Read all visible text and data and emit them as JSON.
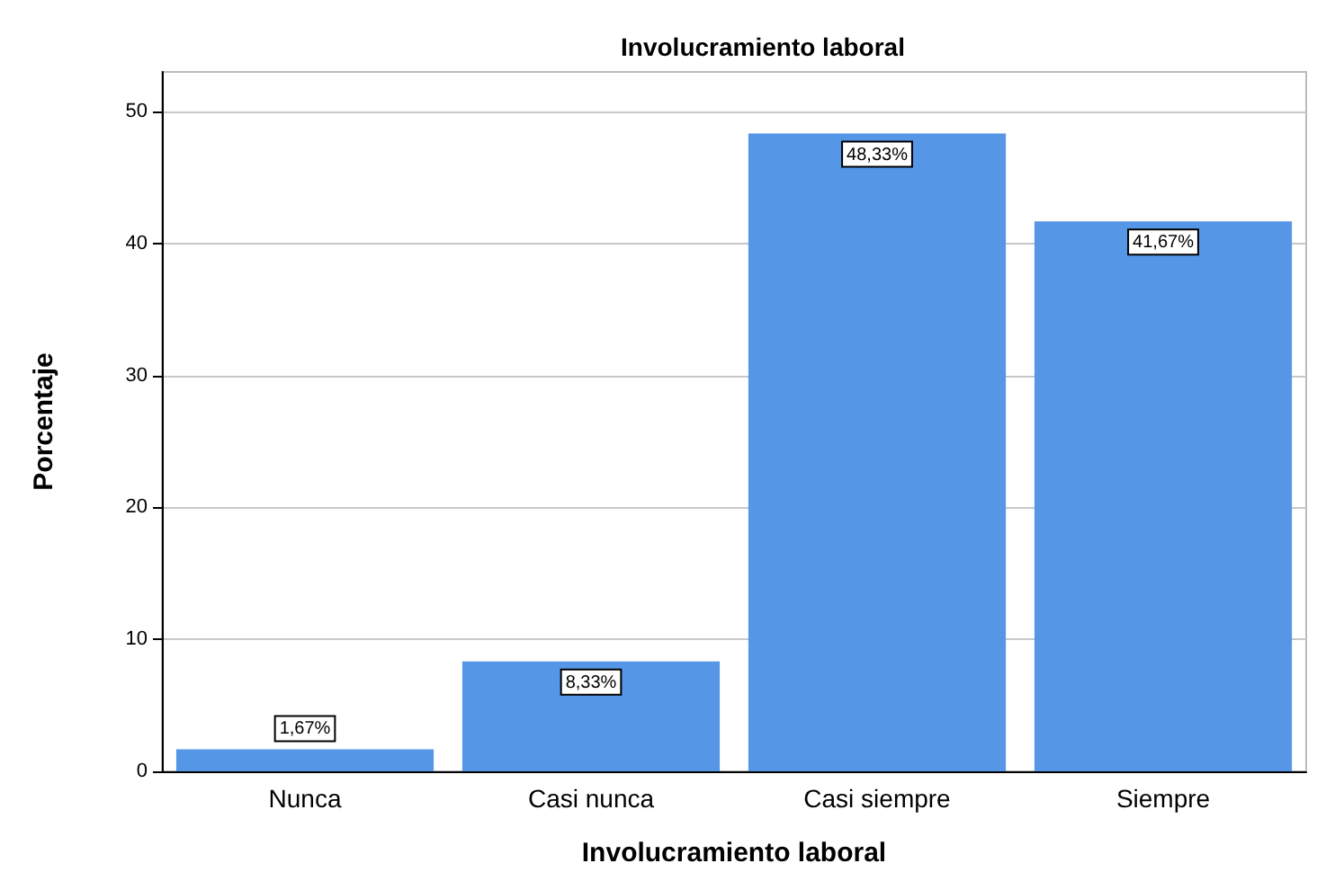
{
  "chart_data": {
    "type": "bar",
    "title": "Involucramiento laboral",
    "xlabel": "Involucramiento laboral",
    "ylabel": "Porcentaje",
    "categories": [
      "Nunca",
      "Casi nunca",
      "Casi siempre",
      "Siempre"
    ],
    "values": [
      1.67,
      8.33,
      48.33,
      41.67
    ],
    "color": "#5596e6",
    "value_labels": [
      "1,67%",
      "8,33%",
      "48,33%",
      "41,67%"
    ],
    "ylim": [
      0,
      53
    ],
    "yticks": [
      0,
      10,
      20,
      30,
      40,
      50
    ],
    "grid": "y"
  }
}
